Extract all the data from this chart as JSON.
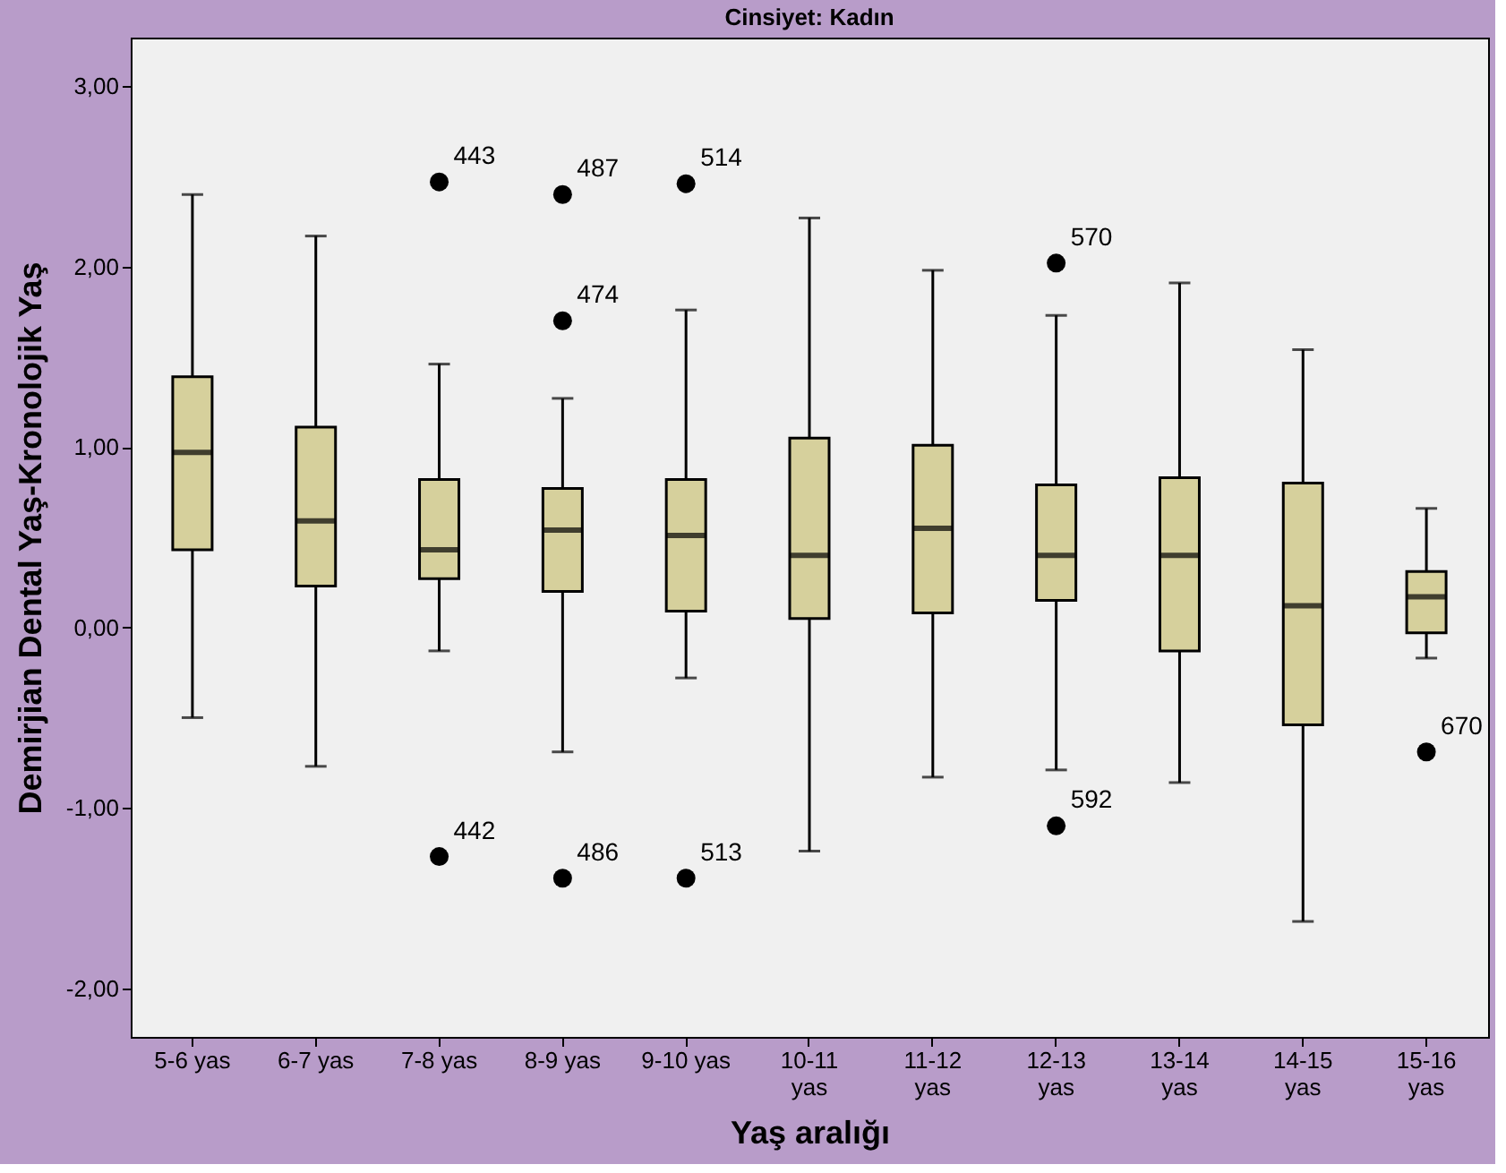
{
  "chart_data": {
    "type": "box",
    "title": "Cinsiyet: Kadın",
    "xlabel": "Yaş aralığı",
    "ylabel": "Demirjian Dental Yaş-Kronolojik Yaş",
    "categories": [
      "5-6 yas",
      "6-7 yas",
      "7-8 yas",
      "8-9 yas",
      "9-10 yas",
      "10-11 yas",
      "11-12 yas",
      "12-13 yas",
      "13-14 yas",
      "14-15 yas",
      "15-16 yas"
    ],
    "color": "#d6d09c",
    "boxes": [
      {
        "low": -0.5,
        "q1": 0.43,
        "median": 0.97,
        "q3": 1.39,
        "high": 2.4
      },
      {
        "low": -0.77,
        "q1": 0.23,
        "median": 0.59,
        "q3": 1.11,
        "high": 2.17
      },
      {
        "low": -0.13,
        "q1": 0.27,
        "median": 0.43,
        "q3": 0.82,
        "high": 1.46,
        "outliers": [
          2.47,
          -1.27
        ]
      },
      {
        "low": -0.69,
        "q1": 0.2,
        "median": 0.54,
        "q3": 0.77,
        "high": 1.27,
        "outliers": [
          2.4,
          1.7,
          -1.39
        ]
      },
      {
        "low": -0.28,
        "q1": 0.09,
        "median": 0.51,
        "q3": 0.82,
        "high": 1.76,
        "outliers": [
          2.46,
          -1.39
        ]
      },
      {
        "low": -1.24,
        "q1": 0.05,
        "median": 0.4,
        "q3": 1.05,
        "high": 2.27
      },
      {
        "low": -0.83,
        "q1": 0.08,
        "median": 0.55,
        "q3": 1.01,
        "high": 1.98
      },
      {
        "low": -0.79,
        "q1": 0.15,
        "median": 0.4,
        "q3": 0.79,
        "high": 1.73,
        "outliers": [
          2.02,
          -1.1
        ]
      },
      {
        "low": -0.86,
        "q1": -0.13,
        "median": 0.4,
        "q3": 0.83,
        "high": 1.91
      },
      {
        "low": -1.63,
        "q1": -0.54,
        "median": 0.12,
        "q3": 0.8,
        "high": 1.54
      },
      {
        "low": -0.17,
        "q1": -0.03,
        "median": 0.17,
        "q3": 0.31,
        "high": 0.66,
        "outliers": [
          -0.69
        ]
      }
    ],
    "annotations": [
      "443",
      "442",
      "487",
      "474",
      "486",
      "514",
      "513",
      "570",
      "592",
      "670"
    ],
    "ylim": [
      -2.27,
      3.27
    ],
    "yticks": [
      {
        "value": -2,
        "label": "-2,00"
      },
      {
        "value": -1,
        "label": "-1,00"
      },
      {
        "value": 0,
        "label": "0,00"
      },
      {
        "value": 1,
        "label": "1,00"
      },
      {
        "value": 2,
        "label": "2,00"
      },
      {
        "value": 3,
        "label": "3,00"
      }
    ],
    "grid": false
  }
}
